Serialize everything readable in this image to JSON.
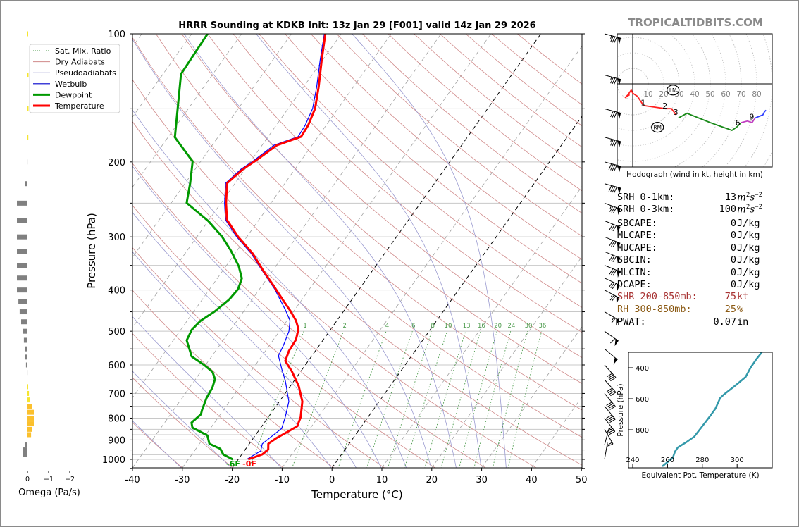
{
  "watermark": "TROPICALTIDBITS.COM",
  "chart_data": [
    {
      "type": "line",
      "id": "skewt",
      "title": "HRRR Sounding at KDKB Init: 13z Jan 29 [F001] valid 14z Jan 29 2026",
      "xlabel": "Temperature (°C)",
      "ylabel": "Pressure (hPa)",
      "xlim": [
        -40,
        50
      ],
      "ylim": [
        1050,
        100
      ],
      "yscale": "log",
      "xticks": [
        -40,
        -30,
        -20,
        -10,
        0,
        10,
        20,
        30,
        40,
        50
      ],
      "yticks": [
        100,
        200,
        300,
        400,
        500,
        600,
        700,
        800,
        900,
        1000
      ],
      "grid": true,
      "legend": {
        "placement": "upper-left outside",
        "entries": [
          "Sat. Mix. Ratio",
          "Dry Adiabats",
          "Pseudoadiabats",
          "Wetbulb",
          "Dewpoint",
          "Temperature"
        ]
      },
      "colors": {
        "temperature": "#ff0000",
        "dewpoint": "#009900",
        "wetbulb": "#0000ff",
        "dry_adiabats": "#d08a8a",
        "pseudoadiabats": "#9a9ad0",
        "mixing_ratio": "#4a9a4a"
      },
      "mixing_ratio_labels": [
        1,
        2,
        4,
        6,
        8,
        10,
        13,
        16,
        20,
        24,
        30,
        36
      ],
      "surface_labels": {
        "dewpoint": "-6F",
        "temperature": "-0F"
      },
      "series": [
        {
          "name": "Temperature",
          "p": [
            1000,
            973.7,
            948,
            919,
            892,
            859,
            836,
            796,
            731,
            673,
            621,
            587,
            556,
            523,
            494,
            472,
            447,
            421,
            389,
            363,
            328,
            299.6,
            273.6,
            249.7,
            224.4,
            207.9,
            198.6,
            182.6,
            174.4,
            164.1,
            149.8,
            133.1,
            115.2,
            100
          ],
          "t": [
            -18.0,
            -15.9,
            -15.4,
            -16.2,
            -15.4,
            -13.9,
            -12.9,
            -13.5,
            -15.4,
            -18.3,
            -21.8,
            -24.6,
            -25.3,
            -25.5,
            -26.5,
            -28.2,
            -30.8,
            -33.9,
            -37.9,
            -41.5,
            -46.5,
            -51.8,
            -56.4,
            -59.0,
            -61.6,
            -60.4,
            -59.1,
            -57.0,
            -53.4,
            -53.6,
            -54.6,
            -57.0,
            -60.2,
            -63.2
          ]
        },
        {
          "name": "Dewpoint",
          "p": [
            1000,
            973.7,
            944.6,
            919,
            878.5,
            842.5,
            820,
            783.4,
            765.7,
            717.8,
            678.1,
            647.8,
            623.4,
            599.9,
            573.1,
            525.1,
            496,
            472,
            449,
            421,
            397.6,
            375.4,
            351.9,
            323.4,
            299.6,
            275.7,
            249.7,
            224.4,
            199.5,
            175.1,
            124.3,
            100
          ],
          "t": [
            -21.1,
            -23.7,
            -25.1,
            -28.0,
            -29.6,
            -33.7,
            -34.6,
            -33.9,
            -34.3,
            -35.1,
            -35.4,
            -36.1,
            -37.6,
            -40.3,
            -44.0,
            -47.3,
            -47.8,
            -47.3,
            -45.8,
            -44.6,
            -44.3,
            -45.1,
            -47.4,
            -51.2,
            -55.0,
            -59.9,
            -66.9,
            -69.0,
            -71.6,
            -78.6,
            -86.4,
            -86.8
          ]
        },
        {
          "name": "Wetbulb",
          "p": [
            1000,
            955.4,
            919,
            884,
            846,
            796,
            731,
            653,
            616,
            571,
            539,
            500,
            472,
            446,
            397.6,
            363,
            328,
            299.6,
            273.6,
            249.7,
            224.4,
            207.9,
            198.6,
            182.6,
            174.4,
            164.1,
            149.8,
            133.1,
            115.2,
            100
          ],
          "t": [
            -18.3,
            -16.7,
            -17.4,
            -16.6,
            -15.7,
            -16.6,
            -18.1,
            -21.8,
            -24.0,
            -26.7,
            -27.2,
            -28.1,
            -29.4,
            -31.8,
            -37.0,
            -41.7,
            -46.8,
            -52.1,
            -56.7,
            -59.3,
            -61.9,
            -60.8,
            -59.5,
            -57.6,
            -54.0,
            -54.2,
            -55.1,
            -57.4,
            -60.5,
            -63.4
          ]
        }
      ],
      "wind_barbs": [
        {
          "p": 100,
          "dir": 285,
          "kt": 85
        },
        {
          "p": 125,
          "dir": 285,
          "kt": 85
        },
        {
          "p": 150,
          "dir": 285,
          "kt": 80
        },
        {
          "p": 175,
          "dir": 285,
          "kt": 85
        },
        {
          "p": 200,
          "dir": 285,
          "kt": 90
        },
        {
          "p": 225,
          "dir": 285,
          "kt": 90
        },
        {
          "p": 250,
          "dir": 290,
          "kt": 85
        },
        {
          "p": 275,
          "dir": 292,
          "kt": 80
        },
        {
          "p": 300,
          "dir": 292,
          "kt": 80
        },
        {
          "p": 325,
          "dir": 292,
          "kt": 80
        },
        {
          "p": 350,
          "dir": 292,
          "kt": 80
        },
        {
          "p": 375,
          "dir": 295,
          "kt": 80
        },
        {
          "p": 400,
          "dir": 298,
          "kt": 75
        },
        {
          "p": 450,
          "dir": 300,
          "kt": 65
        },
        {
          "p": 500,
          "dir": 305,
          "kt": 60
        },
        {
          "p": 550,
          "dir": 310,
          "kt": 50
        },
        {
          "p": 600,
          "dir": 318,
          "kt": 40
        },
        {
          "p": 650,
          "dir": 318,
          "kt": 40
        },
        {
          "p": 700,
          "dir": 320,
          "kt": 40
        },
        {
          "p": 750,
          "dir": 320,
          "kt": 40
        },
        {
          "p": 800,
          "dir": 322,
          "kt": 35
        },
        {
          "p": 850,
          "dir": 330,
          "kt": 15
        },
        {
          "p": 925,
          "dir": 195,
          "kt": 10
        },
        {
          "p": 1000,
          "dir": 190,
          "kt": 5
        }
      ]
    },
    {
      "type": "line",
      "id": "hodograph",
      "xlabel": "Hodograph (wind in kt, height in km)",
      "ring_labels": [
        10,
        20,
        30,
        40,
        50,
        60,
        70,
        80
      ],
      "segments": [
        {
          "color": "#ff2020",
          "u": [
            -2,
            -5,
            -3,
            -1,
            0,
            3,
            5,
            7,
            14,
            21,
            25,
            28
          ],
          "v": [
            -7,
            -9,
            -7,
            -4,
            -6,
            -8,
            -11,
            -14,
            -15,
            -16,
            -16,
            -20
          ]
        },
        {
          "color": "#1a8a1a",
          "u": [
            29.5,
            35,
            50,
            64,
            67,
            70
          ],
          "v": [
            -22,
            -19,
            -25,
            -30,
            -28,
            -25
          ]
        },
        {
          "color": "#c040c0",
          "u": [
            70,
            74,
            77,
            79
          ],
          "v": [
            -25,
            -24,
            -25,
            -22
          ]
        },
        {
          "color": "#3040ff",
          "u": [
            79,
            84,
            85,
            86
          ],
          "v": [
            -22,
            -20,
            -18,
            -17
          ]
        }
      ],
      "height_labels": [
        {
          "label": "1",
          "u": 7,
          "v": -13
        },
        {
          "label": "2",
          "u": 21,
          "v": -15
        },
        {
          "label": "3",
          "u": 28,
          "v": -19
        },
        {
          "label": "6",
          "u": 68,
          "v": -26
        },
        {
          "label": "9",
          "u": 77,
          "v": -22
        }
      ],
      "storm_motion": [
        {
          "label": "LM",
          "u": 26,
          "v": -4
        },
        {
          "label": "RM",
          "u": 16,
          "v": -28
        }
      ]
    },
    {
      "type": "line",
      "id": "theta-e",
      "xlabel": "Equivalent Pot. Temperature (K)",
      "ylabel": "Pressure (hPa)",
      "xticks": [
        240,
        260,
        280,
        300
      ],
      "yticks": [
        400,
        600,
        800
      ],
      "xlim": [
        237.6,
        320
      ],
      "ylim": [
        1045,
        300
      ],
      "color": "#3399aa",
      "theta_e": [
        257,
        263,
        264.3,
        265.9,
        271.2,
        275.3,
        279.4,
        284.6,
        287.5,
        290.3,
        292.3,
        299.6,
        304.9,
        307.7,
        311,
        314.2
      ],
      "p": [
        1036,
        982,
        941,
        914,
        877,
        845,
        786,
        709,
        664,
        595,
        573,
        509,
        459,
        400,
        345,
        300
      ]
    },
    {
      "type": "bar",
      "id": "omega",
      "xlabel": "Omega (Pa/s)",
      "xticks": [
        "0",
        "−1",
        "−2"
      ],
      "xlim": [
        1.3,
        -2.5
      ],
      "colors": {
        "sinking": "#808080",
        "rising_weak": "#f5e530",
        "rising": "#fbc02d"
      },
      "p": [
        100,
        125,
        150,
        175,
        200,
        225,
        250,
        275,
        300,
        325,
        350,
        375,
        400,
        425,
        450,
        475,
        500,
        525,
        550,
        575,
        600,
        625,
        675,
        700,
        725,
        750,
        775,
        800,
        825,
        850,
        875,
        925,
        950,
        975
      ],
      "omega": [
        -0.03,
        -0.05,
        -0.05,
        -0.04,
        0.03,
        0.1,
        0.5,
        0.5,
        0.5,
        0.5,
        0.5,
        0.5,
        0.5,
        0.43,
        0.37,
        0.3,
        0.23,
        0.17,
        0.13,
        0.1,
        0.07,
        0.03,
        -0.03,
        -0.07,
        -0.13,
        -0.2,
        -0.3,
        -0.3,
        -0.3,
        -0.23,
        -0.17,
        0.1,
        0.2,
        0.2
      ]
    }
  ],
  "indices": [
    {
      "label": "SRH 0-1km:",
      "value": "13",
      "unit": "m2s-2",
      "color": "#000000"
    },
    {
      "label": "SRH 0-3km:",
      "value": "100",
      "unit": "m2s-2",
      "color": "#000000"
    },
    {
      "label": "SBCAPE:",
      "value": "0",
      "unit": "J/kg",
      "color": "#000000"
    },
    {
      "label": "MLCAPE:",
      "value": "0",
      "unit": "J/kg",
      "color": "#000000"
    },
    {
      "label": "MUCAPE:",
      "value": "0",
      "unit": "J/kg",
      "color": "#000000"
    },
    {
      "label": "SBCIN:",
      "value": "0",
      "unit": "J/kg",
      "color": "#000000"
    },
    {
      "label": "MLCIN:",
      "value": "0",
      "unit": "J/kg",
      "color": "#000000"
    },
    {
      "label": "DCAPE:",
      "value": "0",
      "unit": "J/kg",
      "color": "#000000"
    },
    {
      "label": "SHR 200-850mb:",
      "value": "75",
      "unit": "kt",
      "color": "#a83232"
    },
    {
      "label": "RH 300-850mb:",
      "value": "25",
      "unit": "%",
      "color": "#8b5a14"
    },
    {
      "label": "PWAT:",
      "value": "0.07",
      "unit": "in",
      "color": "#000000"
    }
  ]
}
